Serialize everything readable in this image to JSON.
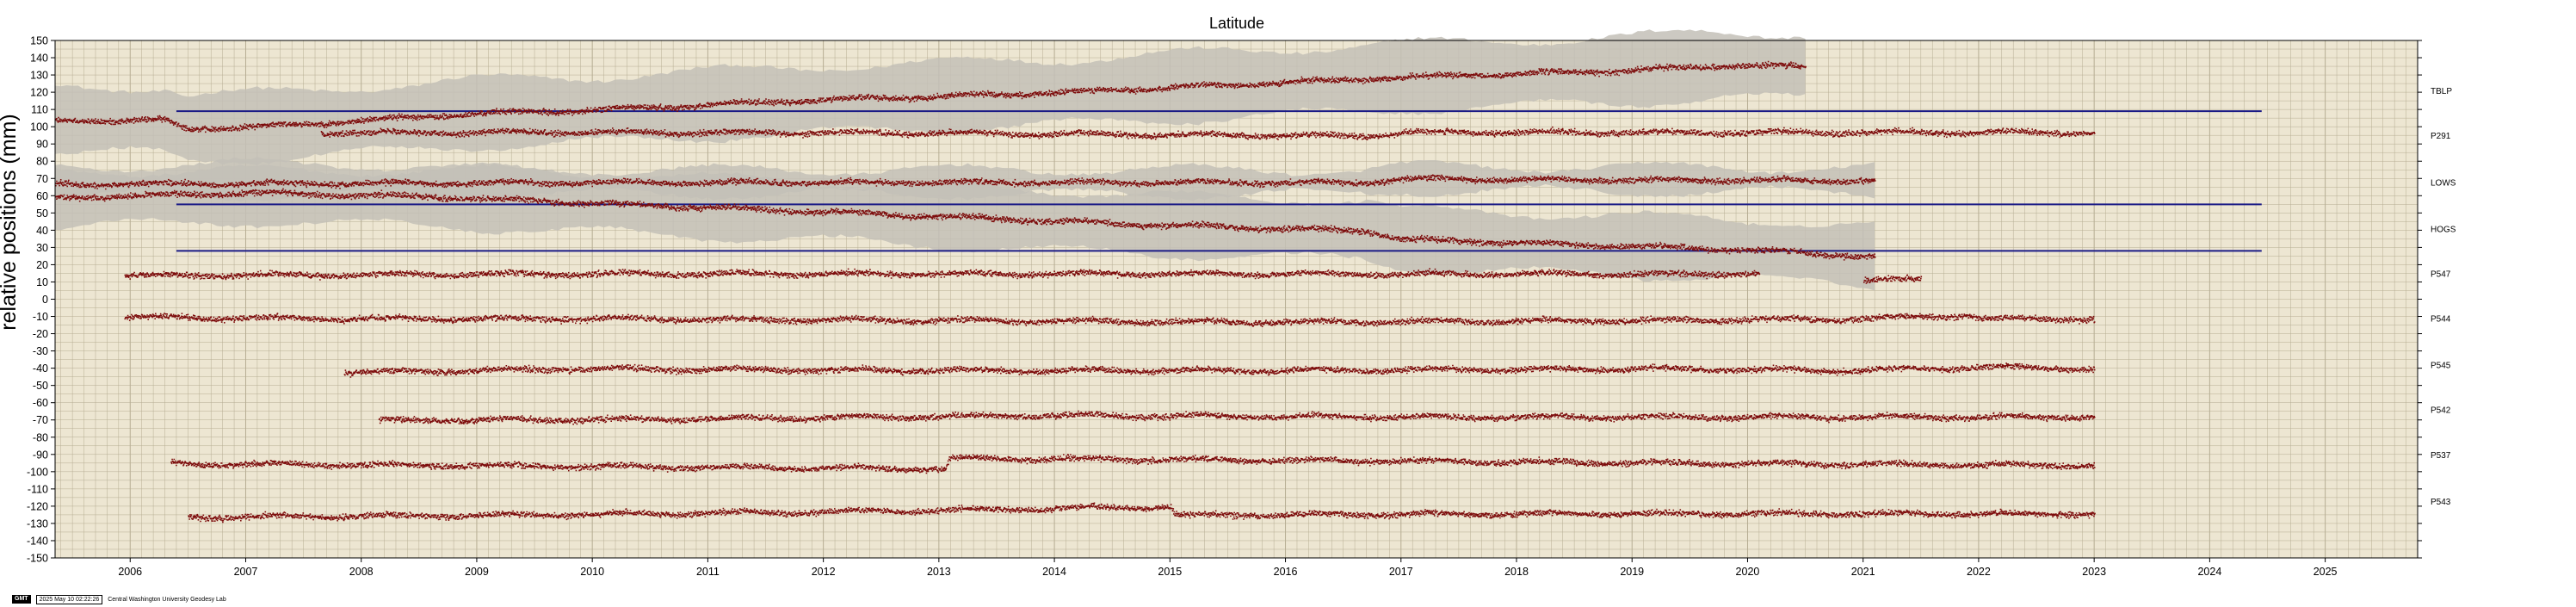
{
  "footer": {
    "logo_text": "GMT",
    "timestamp": "2025 May 10 02:22:26",
    "lab": "Central Washington University Geodesy Lab"
  },
  "colors": {
    "plot_bg": "#ede6d2",
    "grid": "#b6ad93",
    "points": "#7d0c0c",
    "band": "#c3c0b7",
    "reference_line": "#1b1b86"
  },
  "chart_data": {
    "type": "scatter",
    "title": "Latitude",
    "xlabel": "",
    "ylabel": "relative positions (mm)",
    "xlim": [
      2005.35,
      2025.8
    ],
    "ylim": [
      -150,
      150
    ],
    "grid": true,
    "x_ticks": [
      2006,
      2007,
      2008,
      2009,
      2010,
      2011,
      2012,
      2013,
      2014,
      2015,
      2016,
      2017,
      2018,
      2019,
      2020,
      2021,
      2022,
      2023,
      2024,
      2025
    ],
    "y_ticks": [
      150,
      140,
      130,
      120,
      110,
      100,
      90,
      80,
      70,
      60,
      50,
      40,
      30,
      20,
      10,
      0,
      -10,
      -20,
      -30,
      -40,
      -50,
      -60,
      -70,
      -80,
      -90,
      -100,
      -110,
      -120,
      -130,
      -140,
      -150
    ],
    "reference_lines": [
      {
        "y": 109,
        "x_start": 2006.4,
        "x_end": 2024.45
      },
      {
        "y": 55,
        "x_start": 2006.4,
        "x_end": 2024.45
      },
      {
        "y": 28,
        "x_start": 2006.4,
        "x_end": 2024.45
      }
    ],
    "series": [
      {
        "name": "TBLP",
        "label_y": 121,
        "start": 2005.35,
        "end": 2020.5,
        "pts": [
          [
            2005.35,
            104
          ],
          [
            2006.3,
            104
          ],
          [
            2006.5,
            99
          ],
          [
            2007.3,
            101
          ],
          [
            2008.0,
            104
          ],
          [
            2009.0,
            108
          ],
          [
            2010.0,
            110
          ],
          [
            2011.0,
            113
          ],
          [
            2012.0,
            116
          ],
          [
            2013.0,
            118
          ],
          [
            2014.0,
            120
          ],
          [
            2015.0,
            123
          ],
          [
            2016.0,
            126
          ],
          [
            2017.0,
            129
          ],
          [
            2018.0,
            131
          ],
          [
            2019.0,
            133
          ],
          [
            2019.8,
            136
          ],
          [
            2020.5,
            135
          ]
        ],
        "band": 18
      },
      {
        "name": "P291",
        "label_y": 95,
        "start": 2007.65,
        "end": 2023.0,
        "pts": [
          [
            2007.65,
            97
          ],
          [
            2012.0,
            97
          ],
          [
            2016.7,
            95
          ],
          [
            2017.0,
            97
          ],
          [
            2023.0,
            97
          ]
        ],
        "band": 0
      },
      {
        "name": "LOWS",
        "label_y": 68,
        "start": 2005.35,
        "end": 2021.1,
        "pts": [
          [
            2005.35,
            67
          ],
          [
            2010.0,
            68
          ],
          [
            2016.6,
            68
          ],
          [
            2016.7,
            68
          ],
          [
            2017.0,
            70
          ],
          [
            2021.1,
            69
          ]
        ],
        "band": 6
      },
      {
        "name": "HOGS",
        "label_y": 41,
        "start": 2005.35,
        "end": 2021.1,
        "pts": [
          [
            2005.35,
            59
          ],
          [
            2007.0,
            62
          ],
          [
            2008.5,
            60
          ],
          [
            2010.0,
            56
          ],
          [
            2012.0,
            51
          ],
          [
            2013.5,
            47
          ],
          [
            2015.0,
            43
          ],
          [
            2016.7,
            40
          ],
          [
            2017.0,
            35
          ],
          [
            2018.0,
            33
          ],
          [
            2019.0,
            31
          ],
          [
            2020.0,
            29
          ],
          [
            2021.1,
            25
          ]
        ],
        "band": 16
      },
      {
        "name": "P547",
        "label_y": 15,
        "start": 2005.95,
        "end": 2021.5,
        "pts": [
          [
            2005.95,
            14
          ],
          [
            2010.0,
            15
          ],
          [
            2015.0,
            15
          ],
          [
            2020.1,
            15
          ],
          [
            2020.2,
            null
          ],
          [
            2021.0,
            11
          ],
          [
            2021.5,
            12
          ]
        ],
        "band": 0
      },
      {
        "name": "P544",
        "label_y": -11,
        "start": 2005.95,
        "end": 2023.0,
        "pts": [
          [
            2005.95,
            -10
          ],
          [
            2008.0,
            -11
          ],
          [
            2010.0,
            -11
          ],
          [
            2013.0,
            -12
          ],
          [
            2016.0,
            -13
          ],
          [
            2019.0,
            -12
          ],
          [
            2021.0,
            -11
          ],
          [
            2021.9,
            -9
          ],
          [
            2022.0,
            -11
          ],
          [
            2023.0,
            -11
          ]
        ],
        "band": 0
      },
      {
        "name": "P545",
        "label_y": -38,
        "start": 2007.85,
        "end": 2023.0,
        "pts": [
          [
            2007.85,
            -42
          ],
          [
            2010.0,
            -40
          ],
          [
            2013.0,
            -41
          ],
          [
            2016.0,
            -41
          ],
          [
            2019.0,
            -40
          ],
          [
            2021.0,
            -41
          ],
          [
            2022.0,
            -39
          ],
          [
            2023.0,
            -40
          ]
        ],
        "band": 0
      },
      {
        "name": "P542",
        "label_y": -64,
        "start": 2008.15,
        "end": 2023.0,
        "pts": [
          [
            2008.15,
            -70
          ],
          [
            2011.0,
            -69
          ],
          [
            2014.0,
            -67
          ],
          [
            2017.0,
            -68
          ],
          [
            2020.0,
            -68
          ],
          [
            2023.0,
            -68
          ]
        ],
        "band": 0
      },
      {
        "name": "P537",
        "label_y": -90,
        "start": 2006.35,
        "end": 2023.0,
        "pts": [
          [
            2006.35,
            -95
          ],
          [
            2013.05,
            -98
          ],
          [
            2013.1,
            -92
          ],
          [
            2016.0,
            -93
          ],
          [
            2020.0,
            -95
          ],
          [
            2023.0,
            -96
          ]
        ],
        "band": 0
      },
      {
        "name": "P543",
        "label_y": -117,
        "start": 2006.5,
        "end": 2023.0,
        "pts": [
          [
            2006.5,
            -126
          ],
          [
            2009.0,
            -125
          ],
          [
            2012.0,
            -123
          ],
          [
            2015.0,
            -120
          ],
          [
            2015.05,
            -125
          ],
          [
            2018.0,
            -124
          ],
          [
            2023.0,
            -124
          ]
        ],
        "band": 0
      }
    ]
  }
}
